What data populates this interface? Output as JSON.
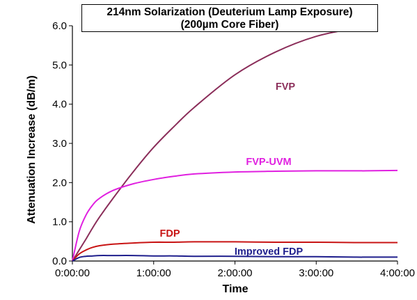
{
  "chart_data": {
    "type": "line",
    "title": "214nm Solarization (Deuterium Lamp Exposure)",
    "subtitle": "(200µm Core Fiber)",
    "xlabel": "Time",
    "ylabel": "Attenuation Increase (dB/m)",
    "xlim": [
      "0:00:00",
      "4:00:00"
    ],
    "ylim": [
      0,
      6
    ],
    "x_ticks": [
      "0:00:00",
      "1:00:00",
      "2:00:00",
      "3:00:00",
      "4:00:00"
    ],
    "y_ticks": [
      "0.0",
      "1.0",
      "2.0",
      "3.0",
      "4.0",
      "5.0",
      "6.0"
    ],
    "grid": false,
    "x": [
      "0:00:00",
      "0:05:00",
      "0:10:00",
      "0:15:00",
      "0:20:00",
      "0:30:00",
      "0:45:00",
      "1:00:00",
      "1:15:00",
      "1:30:00",
      "2:00:00",
      "2:30:00",
      "3:00:00",
      "3:30:00",
      "3:37:00",
      "4:00:00"
    ],
    "series": [
      {
        "name": "FVP",
        "color": "#8b2e5a",
        "values": [
          0.0,
          0.28,
          0.56,
          0.85,
          1.12,
          1.6,
          2.28,
          2.9,
          3.43,
          3.92,
          4.75,
          5.33,
          5.73,
          5.95,
          6.0,
          null
        ]
      },
      {
        "name": "FVP-UVM",
        "color": "#e020e0",
        "values": [
          0.0,
          0.75,
          1.17,
          1.43,
          1.6,
          1.8,
          1.97,
          2.08,
          2.16,
          2.22,
          2.27,
          2.29,
          2.3,
          2.3,
          2.3,
          2.31
        ]
      },
      {
        "name": "FDP",
        "color": "#c81414",
        "values": [
          0.0,
          0.18,
          0.28,
          0.35,
          0.39,
          0.43,
          0.46,
          0.48,
          0.48,
          0.49,
          0.49,
          0.48,
          0.48,
          0.47,
          0.47,
          0.47
        ]
      },
      {
        "name": "Improved FDP",
        "color": "#1e1e8c",
        "values": [
          0.0,
          0.09,
          0.12,
          0.13,
          0.14,
          0.14,
          0.14,
          0.13,
          0.13,
          0.12,
          0.12,
          0.11,
          0.11,
          0.1,
          0.1,
          0.1
        ]
      }
    ]
  }
}
